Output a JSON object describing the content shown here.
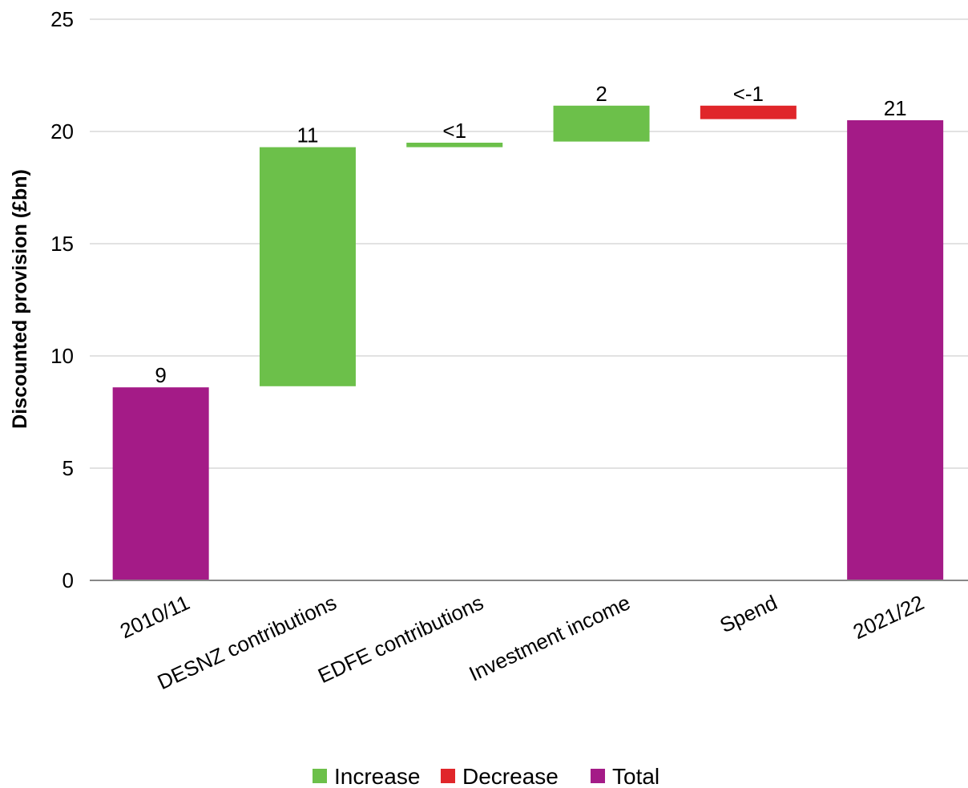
{
  "chart_data": {
    "type": "bar",
    "subtype": "waterfall",
    "title": "",
    "xlabel": "",
    "ylabel": "Discounted provision (£bn)",
    "ylim": [
      0,
      25
    ],
    "yticks": [
      0,
      5,
      10,
      15,
      20,
      25
    ],
    "grid": true,
    "legend_position": "bottom",
    "categories": [
      "2010/11",
      "DESNZ contributions",
      "EDFE contributions",
      "Investment income",
      "Spend",
      "2021/22"
    ],
    "bars": [
      {
        "category": "2010/11",
        "kind": "Total",
        "start": 0,
        "end": 8.6,
        "label": "9"
      },
      {
        "category": "DESNZ contributions",
        "kind": "Increase",
        "start": 8.65,
        "end": 19.3,
        "label": "11"
      },
      {
        "category": "EDFE contributions",
        "kind": "Increase",
        "start": 19.3,
        "end": 19.5,
        "label": "<1"
      },
      {
        "category": "Investment income",
        "kind": "Increase",
        "start": 19.55,
        "end": 21.15,
        "label": "2"
      },
      {
        "category": "Spend",
        "kind": "Decrease",
        "start": 21.15,
        "end": 20.55,
        "label": "<-1"
      },
      {
        "category": "2021/22",
        "kind": "Total",
        "start": 0,
        "end": 20.5,
        "label": "21"
      }
    ],
    "legend": [
      {
        "name": "Increase",
        "color": "#6cc04a"
      },
      {
        "name": "Decrease",
        "color": "#e0262a"
      },
      {
        "name": "Total",
        "color": "#a41b87"
      }
    ]
  }
}
